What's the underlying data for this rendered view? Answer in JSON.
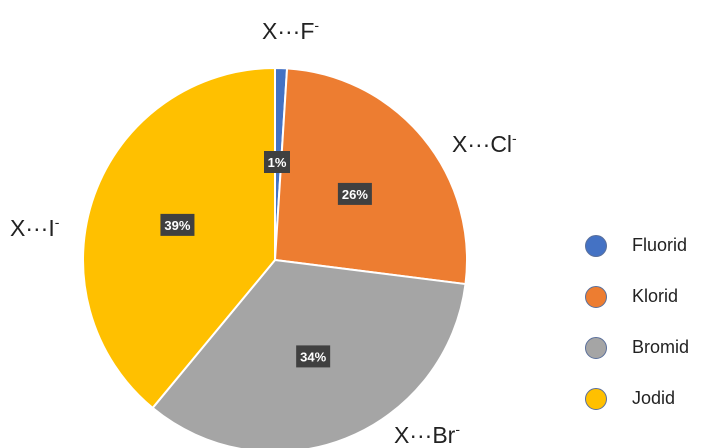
{
  "chart_data": {
    "type": "pie",
    "title": "",
    "categories": [
      "Fluorid",
      "Klorid",
      "Bromid",
      "Jodid"
    ],
    "values": [
      1,
      26,
      34,
      39
    ],
    "data_labels": [
      "1%",
      "26%",
      "34%",
      "39%"
    ],
    "slice_labels": [
      {
        "base": "X···F",
        "charge": "-"
      },
      {
        "base": "X···Cl",
        "charge": "-"
      },
      {
        "base": "X···Br",
        "charge": "-"
      },
      {
        "base": "X···I",
        "charge": "-"
      }
    ],
    "colors": [
      "#4472C4",
      "#ED7D31",
      "#A5A5A5",
      "#FFC000"
    ],
    "legend_position": "right",
    "start_angle": "12 o'clock",
    "direction": "clockwise"
  }
}
